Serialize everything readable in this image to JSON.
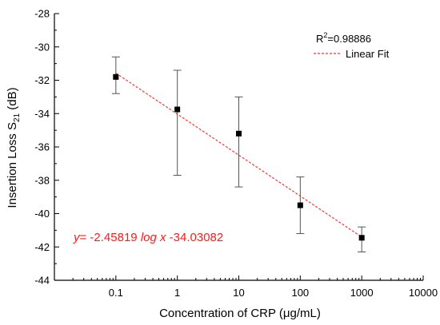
{
  "chart_data": {
    "type": "scatter",
    "xlabel": "Concentration of CRP (μg/mL)",
    "ylabel": {
      "main": "Insertion Loss S",
      "sub": "21",
      "unit": " (dB)"
    },
    "xscale": "log",
    "xlim": [
      0.01,
      10000
    ],
    "ylim": [
      -44,
      -28
    ],
    "x_ticks": [
      {
        "value": 0.1,
        "label": "0.1"
      },
      {
        "value": 1,
        "label": "1"
      },
      {
        "value": 10,
        "label": "10"
      },
      {
        "value": 100,
        "label": "100"
      },
      {
        "value": 1000,
        "label": "1000"
      },
      {
        "value": 10000,
        "label": "10000"
      }
    ],
    "y_ticks": [
      {
        "value": -28,
        "label": "-28"
      },
      {
        "value": -30,
        "label": "-30"
      },
      {
        "value": -32,
        "label": "-32"
      },
      {
        "value": -34,
        "label": "-34"
      },
      {
        "value": -36,
        "label": "-36"
      },
      {
        "value": -38,
        "label": "-38"
      },
      {
        "value": -40,
        "label": "-40"
      },
      {
        "value": -42,
        "label": "-42"
      },
      {
        "value": -44,
        "label": "-44"
      }
    ],
    "points": [
      {
        "x": 0.1,
        "y": -31.8,
        "err_low": -32.8,
        "err_high": -30.6
      },
      {
        "x": 1,
        "y": -33.75,
        "err_low": -37.7,
        "err_high": -31.4
      },
      {
        "x": 10,
        "y": -35.2,
        "err_low": -38.4,
        "err_high": -33.0
      },
      {
        "x": 100,
        "y": -39.5,
        "err_low": -41.2,
        "err_high": -37.8
      },
      {
        "x": 1000,
        "y": -41.45,
        "err_low": -42.3,
        "err_high": -40.8
      }
    ],
    "fit": {
      "slope": -2.45819,
      "intercept": -34.03082,
      "x_range": [
        0.1,
        1000
      ]
    },
    "legend": {
      "r2_prefix": "R",
      "r2_sup": "2",
      "r2_value": "=0.98886",
      "fit_label": "Linear Fit",
      "placement": "top-right"
    },
    "equation": {
      "y": "y",
      "part1": "= -2.45819 ",
      "log": "log",
      "part2": " ",
      "x": "x",
      "part3": " -34.03082"
    },
    "colors": {
      "fit_line": "#ff3333",
      "equation": "#ff1a1a",
      "markers": "#000000",
      "error_bars": "#555555"
    },
    "grid": false
  }
}
